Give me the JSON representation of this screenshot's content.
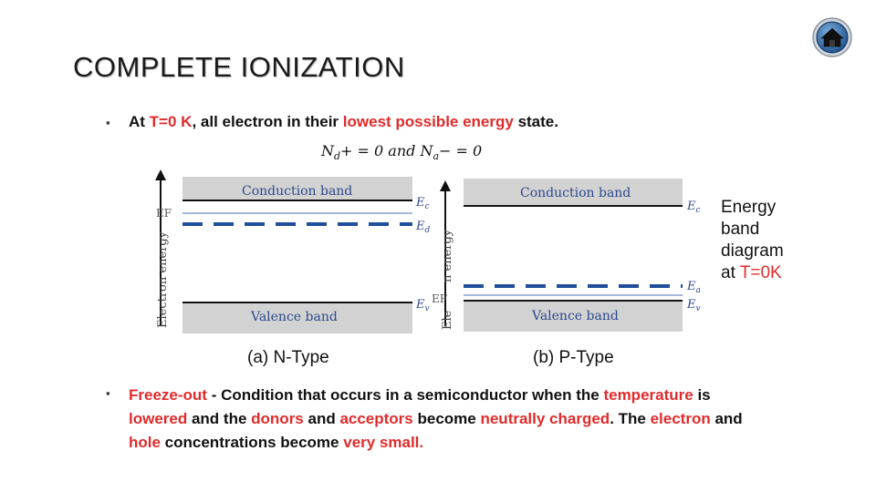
{
  "title": "COMPLETE IONIZATION",
  "home_icon": "home-icon",
  "bullet_glyph": "▪",
  "line1": {
    "p1": "At ",
    "p2": "T=0 K",
    "p3": ", all electron in their ",
    "p4": "lowest possible energy",
    "p5": " state."
  },
  "equation": {
    "nd": "N",
    "nd_sub": "d",
    "mid": "+ = 0 and ",
    "na": "N",
    "na_sub": "a",
    "end": "− = 0"
  },
  "diagram_n": {
    "axis_label": "Electron energy",
    "ef_label": "EF",
    "conduction_band": "Conduction band",
    "valence_band": "Valence band",
    "ec": "E",
    "ec_sub": "c",
    "ed": "E",
    "ed_sub": "d",
    "ev": "E",
    "ev_sub": "v",
    "caption": "(a) N-Type"
  },
  "diagram_p": {
    "axis_label": "Electron energy",
    "axis_visible": "n energy",
    "axis_ele": "Ele",
    "ef_label": "EF",
    "conduction_band": "Conduction band",
    "valence_band": "Valence band",
    "ec": "E",
    "ec_sub": "c",
    "ea": "E",
    "ea_sub": "a",
    "ev": "E",
    "ev_sub": "v",
    "caption": "(b) P-Type"
  },
  "side_note": {
    "l1": "Energy",
    "l2": "band",
    "l3": "diagram",
    "l4_a": "at ",
    "l4_b": "T=0K"
  },
  "freeze": {
    "s1": "Freeze-out",
    "s2": " - Condition that occurs in a semiconductor when the ",
    "s3": "temperature",
    "s4": " is ",
    "s5": "lowered",
    "s6": " and the ",
    "s7": "donors",
    "s8": " and ",
    "s9": "acceptors",
    "s10": " become ",
    "s11": "neutrally charged",
    "s12": ". The ",
    "s13": "electron",
    "s14": " and ",
    "s15": "hole",
    "s16": " concentrations become ",
    "s17": "very small."
  },
  "colors": {
    "accent_red": "#e02b2b",
    "band_gray": "#d2d2d2",
    "dashed_blue": "#1f4e9a",
    "label_blue": "#2b4a8e"
  }
}
